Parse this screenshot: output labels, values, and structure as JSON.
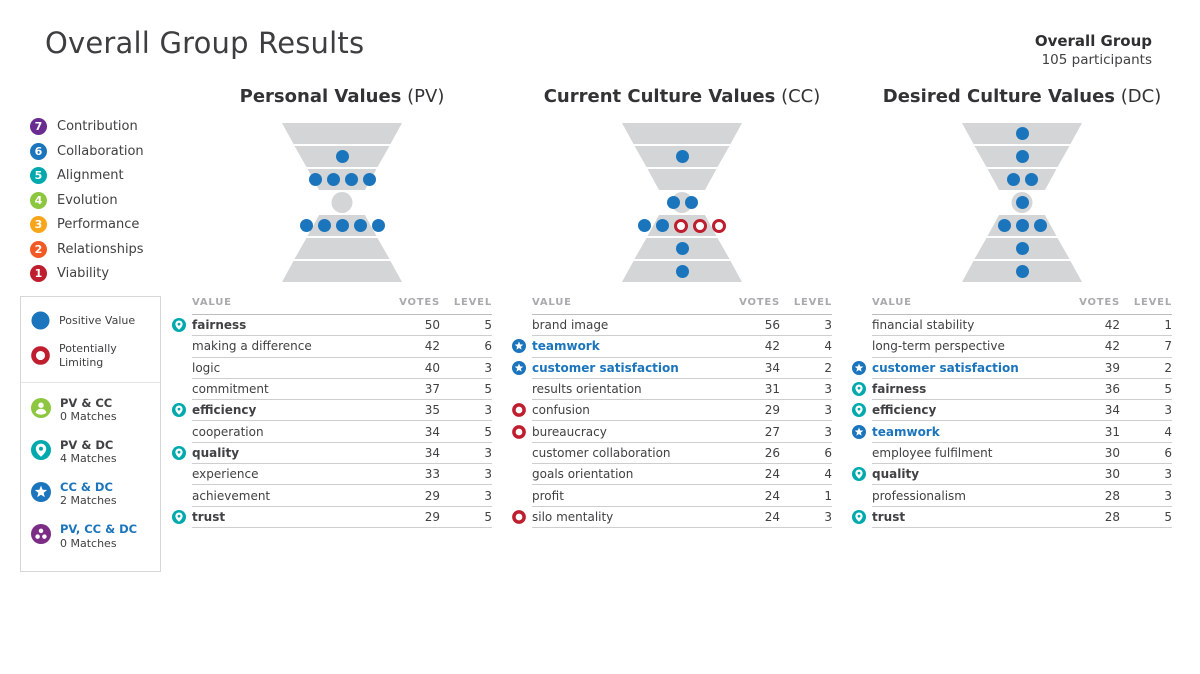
{
  "header": {
    "title": "Overall Group Results",
    "group_name": "Overall Group",
    "participants": "105 participants"
  },
  "colors": {
    "positive_blue": "#1b75bc",
    "limiting_red": "#be1e2d",
    "teal": "#00a9ad",
    "green": "#8dc63f",
    "purple": "#7b2d86",
    "band_gray": "#d4d5d7"
  },
  "levels": [
    {
      "num": "7",
      "label": "Contribution",
      "color": "#6a2c91"
    },
    {
      "num": "6",
      "label": "Collaboration",
      "color": "#1b75bc"
    },
    {
      "num": "5",
      "label": "Alignment",
      "color": "#00a9ad"
    },
    {
      "num": "4",
      "label": "Evolution",
      "color": "#8dc63f"
    },
    {
      "num": "3",
      "label": "Performance",
      "color": "#f9a51a"
    },
    {
      "num": "2",
      "label": "Relationships",
      "color": "#f15a25"
    },
    {
      "num": "1",
      "label": "Viability",
      "color": "#be1e2d"
    }
  ],
  "legend": {
    "positive_label": "Positive Value",
    "limiting_label": "Potentially Limiting",
    "matches": [
      {
        "label": "PV & CC",
        "count": "0 Matches",
        "icon": "person",
        "color": "#8dc63f",
        "label_blue": false
      },
      {
        "label": "PV & DC",
        "count": "4 Matches",
        "icon": "pin",
        "color": "#00a9ad",
        "label_blue": false
      },
      {
        "label": "CC & DC",
        "count": "2 Matches",
        "icon": "star",
        "color": "#1b75bc",
        "label_blue": true
      },
      {
        "label": "PV, CC & DC",
        "count": "0 Matches",
        "icon": "cluster",
        "color": "#7b2d86",
        "label_blue": true
      }
    ]
  },
  "table_headers": [
    "VALUE",
    "VOTES",
    "LEVEL"
  ],
  "columns": [
    {
      "id": "pv",
      "title": "Personal Values",
      "suffix": "(PV)",
      "diagram": [
        {
          "level": 7,
          "dots": []
        },
        {
          "level": 6,
          "dots": [
            "P"
          ]
        },
        {
          "level": 5,
          "dots": [
            "P",
            "P",
            "P",
            "P"
          ]
        },
        {
          "level": 4,
          "dots": []
        },
        {
          "level": 3,
          "dots": [
            "P",
            "P",
            "P",
            "P",
            "P"
          ]
        },
        {
          "level": 2,
          "dots": []
        },
        {
          "level": 1,
          "dots": []
        }
      ],
      "rows": [
        {
          "value": "fairness",
          "votes": "50",
          "level": "5",
          "match": "pv_dc"
        },
        {
          "value": "making a difference",
          "votes": "42",
          "level": "6",
          "match": null
        },
        {
          "value": "logic",
          "votes": "40",
          "level": "3",
          "match": null
        },
        {
          "value": "commitment",
          "votes": "37",
          "level": "5",
          "match": null
        },
        {
          "value": "efficiency",
          "votes": "35",
          "level": "3",
          "match": "pv_dc"
        },
        {
          "value": "cooperation",
          "votes": "34",
          "level": "5",
          "match": null
        },
        {
          "value": "quality",
          "votes": "34",
          "level": "3",
          "match": "pv_dc"
        },
        {
          "value": "experience",
          "votes": "33",
          "level": "3",
          "match": null
        },
        {
          "value": "achievement",
          "votes": "29",
          "level": "3",
          "match": null
        },
        {
          "value": "trust",
          "votes": "29",
          "level": "5",
          "match": "pv_dc"
        }
      ]
    },
    {
      "id": "cc",
      "title": "Current Culture Values",
      "suffix": "(CC)",
      "diagram": [
        {
          "level": 7,
          "dots": []
        },
        {
          "level": 6,
          "dots": [
            "P"
          ]
        },
        {
          "level": 5,
          "dots": []
        },
        {
          "level": 4,
          "dots": [
            "P",
            "P"
          ]
        },
        {
          "level": 3,
          "dots": [
            "P",
            "P",
            "L",
            "L",
            "L"
          ]
        },
        {
          "level": 2,
          "dots": [
            "P"
          ]
        },
        {
          "level": 1,
          "dots": [
            "P"
          ]
        }
      ],
      "rows": [
        {
          "value": "brand image",
          "votes": "56",
          "level": "3",
          "match": null
        },
        {
          "value": "teamwork",
          "votes": "42",
          "level": "4",
          "match": "cc_dc"
        },
        {
          "value": "customer satisfaction",
          "votes": "34",
          "level": "2",
          "match": "cc_dc"
        },
        {
          "value": "results orientation",
          "votes": "31",
          "level": "3",
          "match": null
        },
        {
          "value": "confusion",
          "votes": "29",
          "level": "3",
          "match": "limiting"
        },
        {
          "value": "bureaucracy",
          "votes": "27",
          "level": "3",
          "match": "limiting"
        },
        {
          "value": "customer collaboration",
          "votes": "26",
          "level": "6",
          "match": null
        },
        {
          "value": "goals orientation",
          "votes": "24",
          "level": "4",
          "match": null
        },
        {
          "value": "profit",
          "votes": "24",
          "level": "1",
          "match": null
        },
        {
          "value": "silo mentality",
          "votes": "24",
          "level": "3",
          "match": "limiting"
        }
      ]
    },
    {
      "id": "dc",
      "title": "Desired Culture Values",
      "suffix": "(DC)",
      "diagram": [
        {
          "level": 7,
          "dots": [
            "P"
          ]
        },
        {
          "level": 6,
          "dots": [
            "P"
          ]
        },
        {
          "level": 5,
          "dots": [
            "P",
            "P"
          ]
        },
        {
          "level": 4,
          "dots": [
            "P"
          ]
        },
        {
          "level": 3,
          "dots": [
            "P",
            "P",
            "P"
          ]
        },
        {
          "level": 2,
          "dots": [
            "P"
          ]
        },
        {
          "level": 1,
          "dots": [
            "P"
          ]
        }
      ],
      "rows": [
        {
          "value": "financial stability",
          "votes": "42",
          "level": "1",
          "match": null
        },
        {
          "value": "long-term perspective",
          "votes": "42",
          "level": "7",
          "match": null
        },
        {
          "value": "customer satisfaction",
          "votes": "39",
          "level": "2",
          "match": "cc_dc"
        },
        {
          "value": "fairness",
          "votes": "36",
          "level": "5",
          "match": "pv_dc"
        },
        {
          "value": "efficiency",
          "votes": "34",
          "level": "3",
          "match": "pv_dc"
        },
        {
          "value": "teamwork",
          "votes": "31",
          "level": "4",
          "match": "cc_dc"
        },
        {
          "value": "employee fulfilment",
          "votes": "30",
          "level": "6",
          "match": null
        },
        {
          "value": "quality",
          "votes": "30",
          "level": "3",
          "match": "pv_dc"
        },
        {
          "value": "professionalism",
          "votes": "28",
          "level": "3",
          "match": null
        },
        {
          "value": "trust",
          "votes": "28",
          "level": "5",
          "match": "pv_dc"
        }
      ]
    }
  ],
  "chart_data": [
    {
      "type": "table",
      "title": "Personal Values (PV)",
      "columns": [
        "VALUE",
        "VOTES",
        "LEVEL"
      ],
      "rows": [
        [
          "fairness",
          50,
          5
        ],
        [
          "making a difference",
          42,
          6
        ],
        [
          "logic",
          40,
          3
        ],
        [
          "commitment",
          37,
          5
        ],
        [
          "efficiency",
          35,
          3
        ],
        [
          "cooperation",
          34,
          5
        ],
        [
          "quality",
          34,
          3
        ],
        [
          "experience",
          33,
          3
        ],
        [
          "achievement",
          29,
          3
        ],
        [
          "trust",
          29,
          5
        ]
      ]
    },
    {
      "type": "table",
      "title": "Current Culture Values (CC)",
      "columns": [
        "VALUE",
        "VOTES",
        "LEVEL"
      ],
      "rows": [
        [
          "brand image",
          56,
          3
        ],
        [
          "teamwork",
          42,
          4
        ],
        [
          "customer satisfaction",
          34,
          2
        ],
        [
          "results orientation",
          31,
          3
        ],
        [
          "confusion",
          29,
          3
        ],
        [
          "bureaucracy",
          27,
          3
        ],
        [
          "customer collaboration",
          26,
          6
        ],
        [
          "goals orientation",
          24,
          4
        ],
        [
          "profit",
          24,
          1
        ],
        [
          "silo mentality",
          24,
          3
        ]
      ],
      "limiting_values": [
        "confusion",
        "bureaucracy",
        "silo mentality"
      ]
    },
    {
      "type": "table",
      "title": "Desired Culture Values (DC)",
      "columns": [
        "VALUE",
        "VOTES",
        "LEVEL"
      ],
      "rows": [
        [
          "financial stability",
          42,
          1
        ],
        [
          "long-term perspective",
          42,
          7
        ],
        [
          "customer satisfaction",
          39,
          2
        ],
        [
          "fairness",
          36,
          5
        ],
        [
          "efficiency",
          34,
          3
        ],
        [
          "teamwork",
          31,
          4
        ],
        [
          "employee fulfilment",
          30,
          6
        ],
        [
          "quality",
          30,
          3
        ],
        [
          "professionalism",
          28,
          3
        ],
        [
          "trust",
          28,
          5
        ]
      ]
    }
  ]
}
